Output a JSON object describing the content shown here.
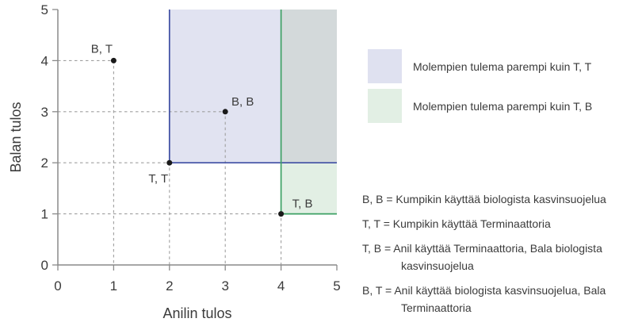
{
  "chart_data": {
    "type": "scatter",
    "title": "",
    "xlabel": "Anilin tulos",
    "ylabel": "Balan tulos",
    "xlim": [
      0,
      5
    ],
    "ylim": [
      0,
      5
    ],
    "xticks": [
      0,
      1,
      2,
      3,
      4,
      5
    ],
    "yticks": [
      0,
      1,
      2,
      3,
      4,
      5
    ],
    "grid": false,
    "points": [
      {
        "label": "B, T",
        "x": 1,
        "y": 4,
        "label_offset": [
          -15,
          -10
        ]
      },
      {
        "label": "B, B",
        "x": 3,
        "y": 3,
        "label_offset": [
          22,
          -8
        ]
      },
      {
        "label": "T, T",
        "x": 2,
        "y": 2,
        "label_offset": [
          -14,
          25
        ]
      },
      {
        "label": "T, B",
        "x": 4,
        "y": 1,
        "label_offset": [
          27,
          -8
        ]
      }
    ],
    "regions": [
      {
        "name": "Molempien tulema parempi kuin T, T",
        "x": [
          2,
          5
        ],
        "y": [
          2,
          5
        ],
        "fill": "#e1e3f1",
        "stroke": "#3e4ea3"
      },
      {
        "name": "Molempien tulema parempi kuin T, B",
        "x": [
          4,
          5
        ],
        "y": [
          1,
          5
        ],
        "fill": "#e2efe4",
        "stroke": "#3da164"
      }
    ],
    "overlap_fill": "#d3d9da",
    "point_color": "#1a1a1a",
    "guide_color": "#a0a0a0",
    "axis_color": "#8a8a8a"
  },
  "legend": {
    "items": [
      {
        "label": "Molempien tulema parempi kuin T, T",
        "color": "#dfe1f0"
      },
      {
        "label": "Molempien tulema parempi kuin T, B",
        "color": "#e2efe4"
      }
    ]
  },
  "key": {
    "items": [
      {
        "text": "B, B = Kumpikin käyttää biologista kasvinsuojelua"
      },
      {
        "text": "T, T = Kumpikin käyttää Terminaattoria"
      },
      {
        "text": "T, B = Anil käyttää Terminaattoria, Bala biologista\nkasvinsuojelua"
      },
      {
        "text": "B, T = Anil käyttää biologista kasvinsuojelua, Bala\nTerminaattoria"
      }
    ]
  }
}
